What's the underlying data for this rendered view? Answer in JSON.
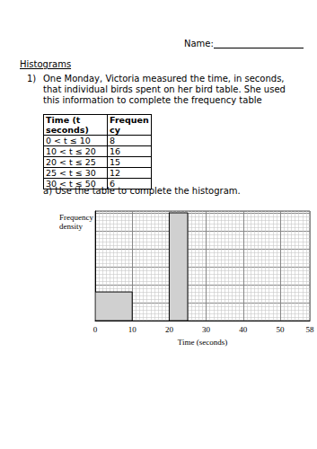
{
  "header": {
    "name_label": "Name:"
  },
  "section_title": "Histograms",
  "question": {
    "number": "1)",
    "text": "One Monday, Victoria measured the time, in seconds, that individual birds spent on her bird table. She used this information to complete the frequency table"
  },
  "table": {
    "header": [
      "Time (t seconds)",
      "Frequency"
    ],
    "rows": [
      [
        "0 < t ≤ 10",
        8
      ],
      [
        "10 < t ≤ 20",
        16
      ],
      [
        "20 < t ≤ 25",
        15
      ],
      [
        "25 < t ≤ 30",
        12
      ],
      [
        "30 < t ≤ 50",
        6
      ]
    ]
  },
  "part_a": "a) Use the table to complete the histogram.",
  "chart_data": {
    "type": "histogram",
    "ylabel": "Frequency density",
    "xlabel": "Time (seconds)",
    "bins": [
      0,
      10,
      20,
      25,
      30,
      50
    ],
    "values": [
      0.8,
      null,
      3,
      null,
      null
    ],
    "color": "#d0d0d0",
    "xlim": [
      0,
      58
    ],
    "xticks": [
      0,
      10,
      20,
      30,
      40,
      50
    ],
    "ylim": [
      0,
      3.05
    ],
    "yticks": [
      0,
      0.5,
      1,
      1.5,
      2,
      2.5,
      3
    ],
    "grid": true,
    "tick_labels": "x"
  }
}
